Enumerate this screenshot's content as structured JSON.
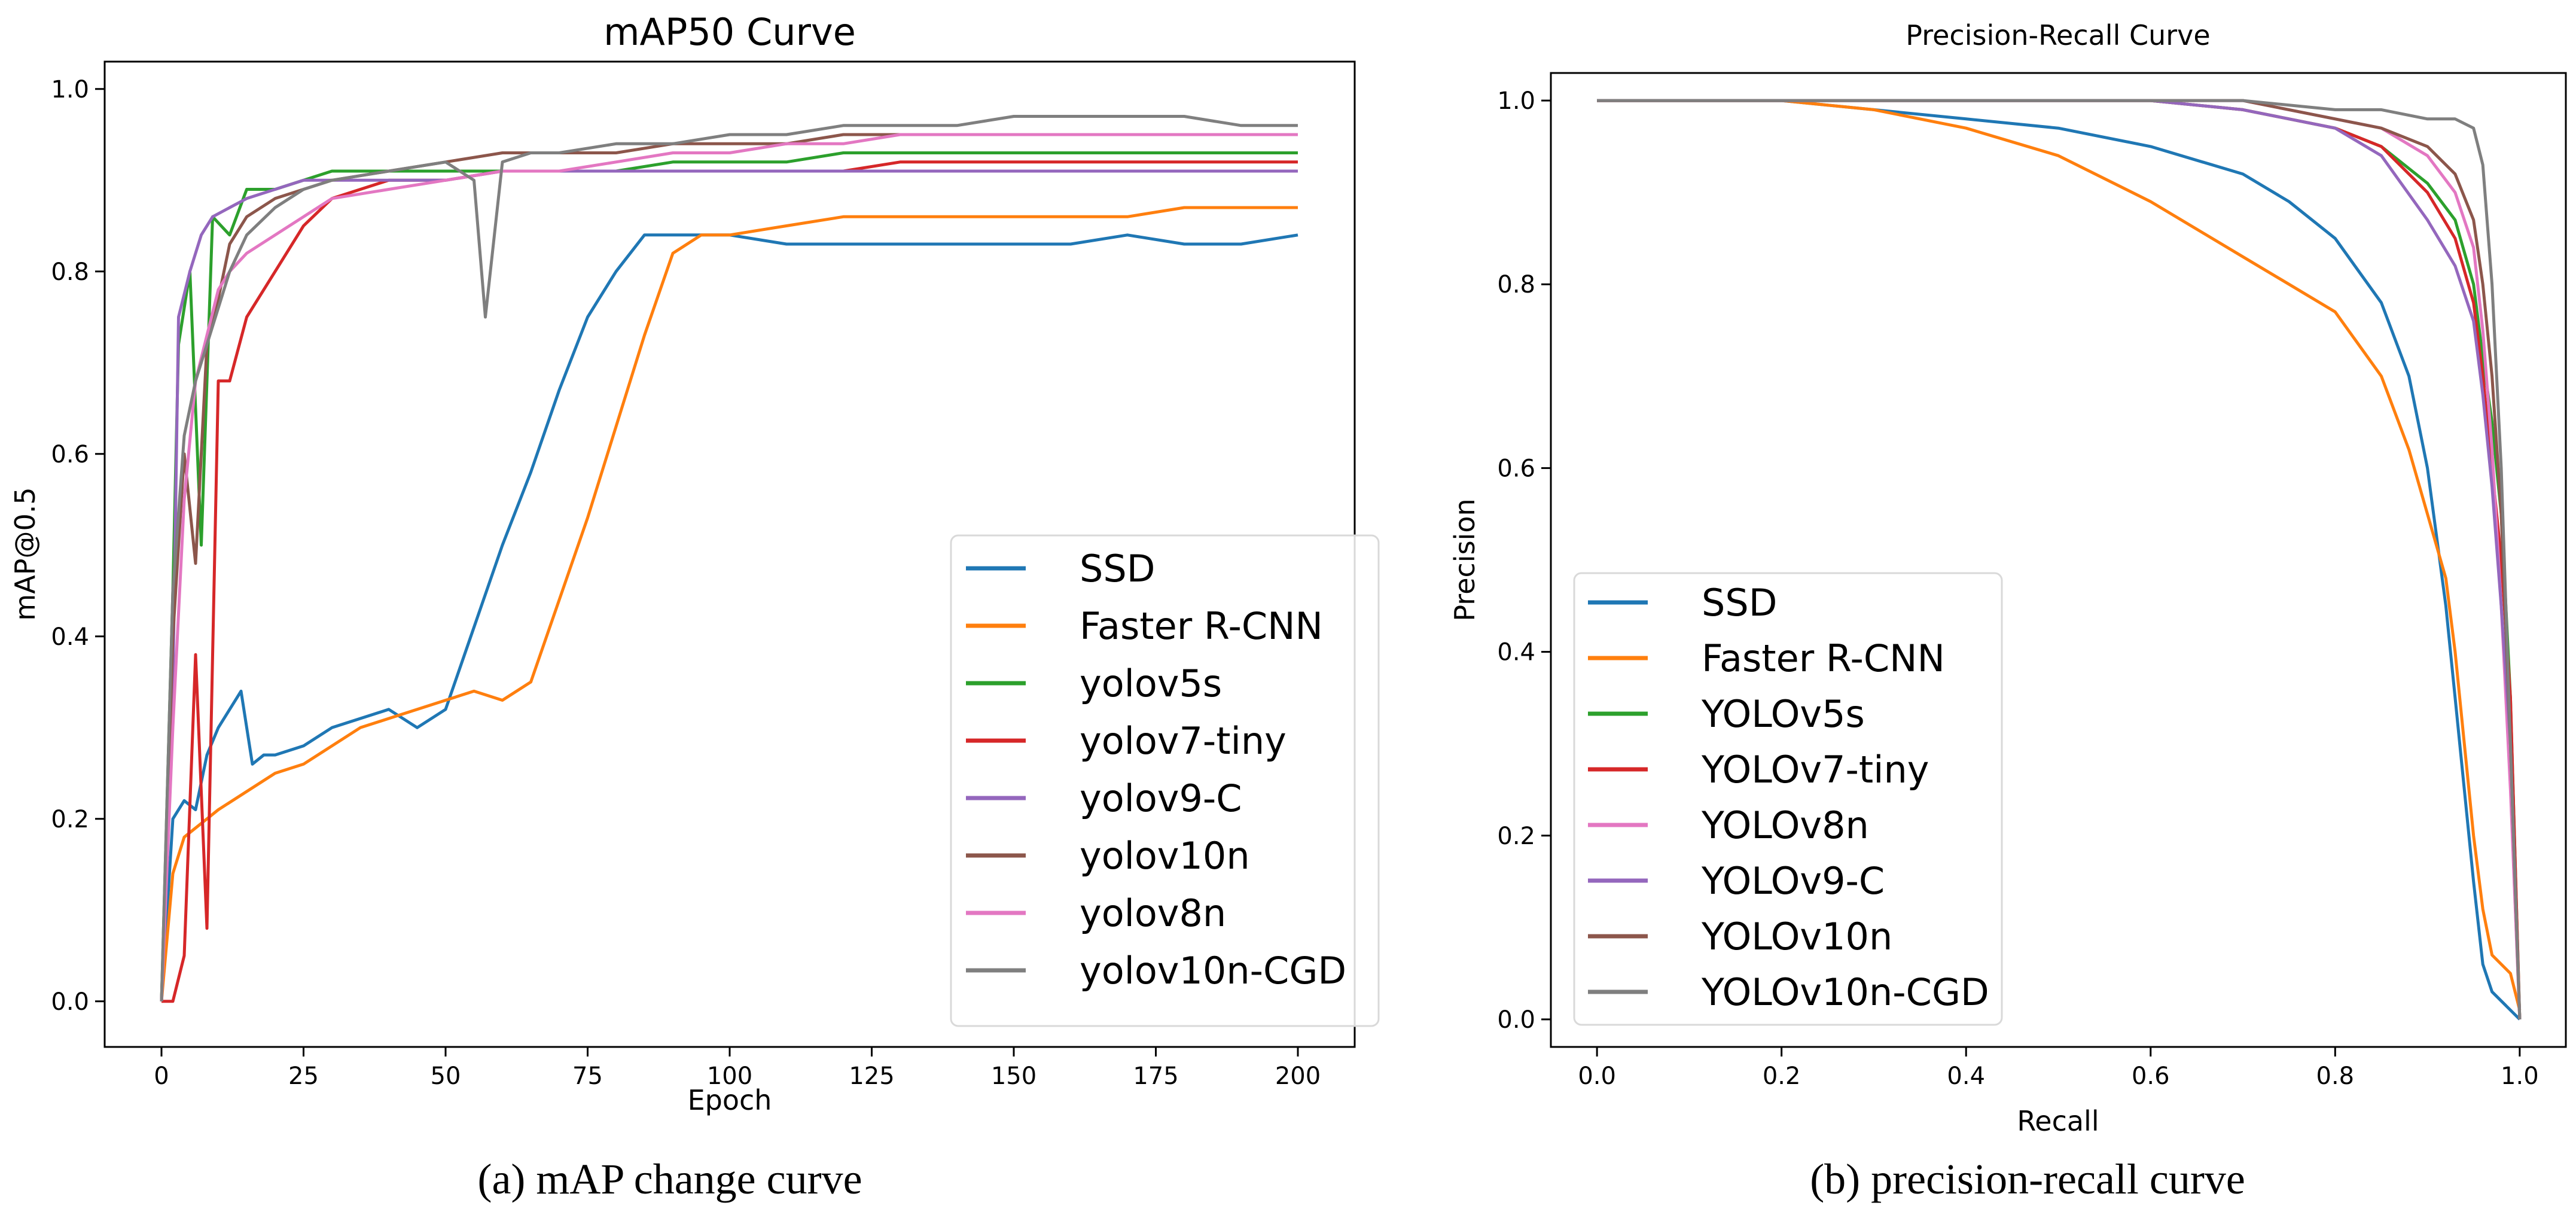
{
  "colors": {
    "SSD": "#1f77b4",
    "Faster R-CNN": "#ff7f0e",
    "yolov5s": "#2ca02c",
    "yolov7-tiny": "#d62728",
    "yolov9-C": "#9467bd",
    "yolov10n": "#8c564b",
    "yolov8n": "#e377c2",
    "yolov10n-CGD": "#7f7f7f"
  },
  "captions": {
    "left": "(a) mAP change curve",
    "right": "(b) precision-recall curve"
  },
  "chart_data": [
    {
      "type": "line",
      "title": "mAP50 Curve",
      "xlabel": "Epoch",
      "ylabel": "mAP@0.5",
      "xlim": [
        -10,
        210
      ],
      "ylim": [
        -0.05,
        1.03
      ],
      "xticks": [
        0,
        25,
        50,
        75,
        100,
        125,
        150,
        175,
        200
      ],
      "yticks": [
        0.0,
        0.2,
        0.4,
        0.6,
        0.8,
        1.0
      ],
      "legend": "lower-right",
      "grid": false,
      "series": [
        {
          "name": "SSD",
          "x": [
            0,
            2,
            4,
            6,
            8,
            10,
            12,
            14,
            16,
            18,
            20,
            25,
            30,
            35,
            40,
            45,
            50,
            55,
            60,
            65,
            70,
            75,
            80,
            85,
            90,
            95,
            100,
            110,
            120,
            130,
            140,
            150,
            160,
            170,
            180,
            190,
            200
          ],
          "y": [
            0.0,
            0.2,
            0.22,
            0.21,
            0.27,
            0.3,
            0.32,
            0.34,
            0.26,
            0.27,
            0.27,
            0.28,
            0.3,
            0.31,
            0.32,
            0.3,
            0.32,
            0.41,
            0.5,
            0.58,
            0.67,
            0.75,
            0.8,
            0.84,
            0.84,
            0.84,
            0.84,
            0.83,
            0.83,
            0.83,
            0.83,
            0.83,
            0.83,
            0.84,
            0.83,
            0.83,
            0.84
          ]
        },
        {
          "name": "Faster R-CNN",
          "x": [
            0,
            2,
            4,
            6,
            8,
            10,
            15,
            20,
            25,
            30,
            35,
            40,
            45,
            50,
            55,
            60,
            65,
            70,
            75,
            80,
            85,
            90,
            95,
            100,
            110,
            120,
            130,
            140,
            150,
            160,
            170,
            180,
            190,
            200
          ],
          "y": [
            0.0,
            0.14,
            0.18,
            0.19,
            0.2,
            0.21,
            0.23,
            0.25,
            0.26,
            0.28,
            0.3,
            0.31,
            0.32,
            0.33,
            0.34,
            0.33,
            0.35,
            0.44,
            0.53,
            0.63,
            0.73,
            0.82,
            0.84,
            0.84,
            0.85,
            0.86,
            0.86,
            0.86,
            0.86,
            0.86,
            0.86,
            0.87,
            0.87,
            0.87
          ]
        },
        {
          "name": "yolov5s",
          "x": [
            0,
            2,
            3,
            5,
            7,
            9,
            12,
            15,
            20,
            25,
            30,
            40,
            50,
            60,
            70,
            80,
            90,
            100,
            110,
            120,
            130,
            140,
            150,
            160,
            170,
            180,
            190,
            200
          ],
          "y": [
            0.0,
            0.45,
            0.72,
            0.8,
            0.5,
            0.86,
            0.84,
            0.89,
            0.89,
            0.9,
            0.91,
            0.91,
            0.91,
            0.91,
            0.91,
            0.91,
            0.92,
            0.92,
            0.92,
            0.93,
            0.93,
            0.93,
            0.93,
            0.93,
            0.93,
            0.93,
            0.93,
            0.93
          ]
        },
        {
          "name": "yolov7-tiny",
          "x": [
            0,
            2,
            4,
            6,
            8,
            10,
            12,
            15,
            20,
            25,
            30,
            40,
            50,
            60,
            70,
            80,
            90,
            100,
            110,
            120,
            130,
            140,
            150,
            160,
            170,
            180,
            190,
            200
          ],
          "y": [
            0.0,
            0.0,
            0.05,
            0.38,
            0.08,
            0.68,
            0.68,
            0.75,
            0.8,
            0.85,
            0.88,
            0.9,
            0.9,
            0.91,
            0.91,
            0.91,
            0.91,
            0.91,
            0.91,
            0.91,
            0.92,
            0.92,
            0.92,
            0.92,
            0.92,
            0.92,
            0.92,
            0.92
          ]
        },
        {
          "name": "yolov9-C",
          "x": [
            0,
            2,
            3,
            5,
            7,
            9,
            12,
            15,
            20,
            25,
            30,
            40,
            50,
            60,
            70,
            80,
            90,
            100,
            110,
            120,
            130,
            140,
            150,
            160,
            170,
            180,
            190,
            200
          ],
          "y": [
            0.0,
            0.34,
            0.75,
            0.8,
            0.84,
            0.86,
            0.87,
            0.88,
            0.89,
            0.9,
            0.9,
            0.9,
            0.9,
            0.91,
            0.91,
            0.91,
            0.91,
            0.91,
            0.91,
            0.91,
            0.91,
            0.91,
            0.91,
            0.91,
            0.91,
            0.91,
            0.91,
            0.91
          ]
        },
        {
          "name": "yolov10n",
          "x": [
            0,
            2,
            4,
            6,
            8,
            10,
            12,
            15,
            20,
            25,
            30,
            40,
            50,
            60,
            70,
            80,
            90,
            100,
            110,
            120,
            130,
            140,
            150,
            160,
            170,
            180,
            190,
            200
          ],
          "y": [
            0.0,
            0.4,
            0.6,
            0.48,
            0.72,
            0.77,
            0.83,
            0.86,
            0.88,
            0.89,
            0.9,
            0.91,
            0.92,
            0.93,
            0.93,
            0.93,
            0.94,
            0.94,
            0.94,
            0.95,
            0.95,
            0.95,
            0.95,
            0.95,
            0.95,
            0.95,
            0.95,
            0.95
          ]
        },
        {
          "name": "yolov8n",
          "x": [
            0,
            2,
            4,
            6,
            8,
            10,
            12,
            15,
            20,
            25,
            30,
            40,
            50,
            60,
            70,
            80,
            90,
            100,
            110,
            120,
            130,
            140,
            150,
            160,
            170,
            180,
            190,
            200
          ],
          "y": [
            0.0,
            0.3,
            0.55,
            0.68,
            0.73,
            0.78,
            0.8,
            0.82,
            0.84,
            0.86,
            0.88,
            0.89,
            0.9,
            0.91,
            0.91,
            0.92,
            0.93,
            0.93,
            0.94,
            0.94,
            0.95,
            0.95,
            0.95,
            0.95,
            0.95,
            0.95,
            0.95,
            0.95
          ]
        },
        {
          "name": "yolov10n-CGD",
          "x": [
            0,
            2,
            4,
            6,
            8,
            10,
            12,
            15,
            20,
            25,
            30,
            40,
            50,
            55,
            57,
            60,
            65,
            70,
            80,
            90,
            100,
            110,
            120,
            130,
            140,
            150,
            160,
            170,
            180,
            190,
            200
          ],
          "y": [
            0.0,
            0.45,
            0.62,
            0.68,
            0.72,
            0.76,
            0.8,
            0.84,
            0.87,
            0.89,
            0.9,
            0.91,
            0.92,
            0.9,
            0.75,
            0.92,
            0.93,
            0.93,
            0.94,
            0.94,
            0.95,
            0.95,
            0.96,
            0.96,
            0.96,
            0.97,
            0.97,
            0.97,
            0.97,
            0.96,
            0.96
          ]
        }
      ]
    },
    {
      "type": "line",
      "title": "Precision-Recall Curve",
      "xlabel": "Recall",
      "ylabel": "Precision",
      "xlim": [
        -0.05,
        1.05
      ],
      "ylim": [
        -0.03,
        1.03
      ],
      "xticks": [
        0.0,
        0.2,
        0.4,
        0.6,
        0.8,
        1.0
      ],
      "yticks": [
        0.0,
        0.2,
        0.4,
        0.6,
        0.8,
        1.0
      ],
      "legend": "lower-left",
      "grid": false,
      "series": [
        {
          "name": "SSD",
          "x": [
            0,
            0.2,
            0.3,
            0.4,
            0.5,
            0.6,
            0.7,
            0.75,
            0.8,
            0.85,
            0.88,
            0.9,
            0.92,
            0.93,
            0.94,
            0.95,
            0.96,
            0.97,
            1.0
          ],
          "y": [
            1.0,
            1.0,
            0.99,
            0.98,
            0.97,
            0.95,
            0.92,
            0.89,
            0.85,
            0.78,
            0.7,
            0.6,
            0.45,
            0.35,
            0.25,
            0.15,
            0.06,
            0.03,
            0.0
          ]
        },
        {
          "name": "Faster R-CNN",
          "x": [
            0,
            0.2,
            0.3,
            0.4,
            0.5,
            0.6,
            0.7,
            0.75,
            0.8,
            0.85,
            0.88,
            0.9,
            0.92,
            0.93,
            0.94,
            0.95,
            0.96,
            0.97,
            0.99,
            1.0
          ],
          "y": [
            1.0,
            1.0,
            0.99,
            0.97,
            0.94,
            0.89,
            0.83,
            0.8,
            0.77,
            0.7,
            0.62,
            0.55,
            0.48,
            0.4,
            0.3,
            0.2,
            0.12,
            0.07,
            0.05,
            0.01
          ]
        },
        {
          "name": "YOLOv5s",
          "x": [
            0,
            0.5,
            0.6,
            0.7,
            0.8,
            0.85,
            0.9,
            0.93,
            0.95,
            0.96,
            0.97,
            0.98,
            0.99,
            1.0
          ],
          "y": [
            1.0,
            1.0,
            1.0,
            0.99,
            0.97,
            0.95,
            0.91,
            0.87,
            0.8,
            0.72,
            0.65,
            0.55,
            0.35,
            0.0
          ]
        },
        {
          "name": "YOLOv7-tiny",
          "x": [
            0,
            0.5,
            0.6,
            0.7,
            0.8,
            0.85,
            0.9,
            0.93,
            0.95,
            0.96,
            0.97,
            0.98,
            0.99,
            1.0
          ],
          "y": [
            1.0,
            1.0,
            1.0,
            0.99,
            0.97,
            0.95,
            0.9,
            0.85,
            0.78,
            0.7,
            0.6,
            0.5,
            0.35,
            0.0
          ]
        },
        {
          "name": "YOLOv8n",
          "x": [
            0,
            0.5,
            0.6,
            0.7,
            0.8,
            0.85,
            0.9,
            0.93,
            0.95,
            0.96,
            0.97,
            0.98,
            0.99,
            1.0
          ],
          "y": [
            1.0,
            1.0,
            1.0,
            1.0,
            0.98,
            0.97,
            0.94,
            0.9,
            0.84,
            0.75,
            0.62,
            0.45,
            0.25,
            0.0
          ]
        },
        {
          "name": "YOLOv9-C",
          "x": [
            0,
            0.5,
            0.6,
            0.7,
            0.8,
            0.85,
            0.9,
            0.93,
            0.95,
            0.96,
            0.97,
            0.98,
            0.99,
            1.0
          ],
          "y": [
            1.0,
            1.0,
            1.0,
            0.99,
            0.97,
            0.94,
            0.87,
            0.82,
            0.76,
            0.68,
            0.58,
            0.45,
            0.3,
            0.0
          ]
        },
        {
          "name": "YOLOv10n",
          "x": [
            0,
            0.5,
            0.6,
            0.7,
            0.8,
            0.85,
            0.9,
            0.93,
            0.95,
            0.96,
            0.97,
            0.98,
            0.99,
            1.0
          ],
          "y": [
            1.0,
            1.0,
            1.0,
            1.0,
            0.98,
            0.97,
            0.95,
            0.92,
            0.87,
            0.8,
            0.7,
            0.55,
            0.3,
            0.0
          ]
        },
        {
          "name": "YOLOv10n-CGD",
          "x": [
            0,
            0.5,
            0.6,
            0.7,
            0.8,
            0.85,
            0.9,
            0.93,
            0.95,
            0.96,
            0.97,
            0.98,
            0.99,
            1.0
          ],
          "y": [
            1.0,
            1.0,
            1.0,
            1.0,
            0.99,
            0.99,
            0.98,
            0.98,
            0.97,
            0.93,
            0.8,
            0.6,
            0.3,
            0.0
          ]
        }
      ]
    }
  ]
}
